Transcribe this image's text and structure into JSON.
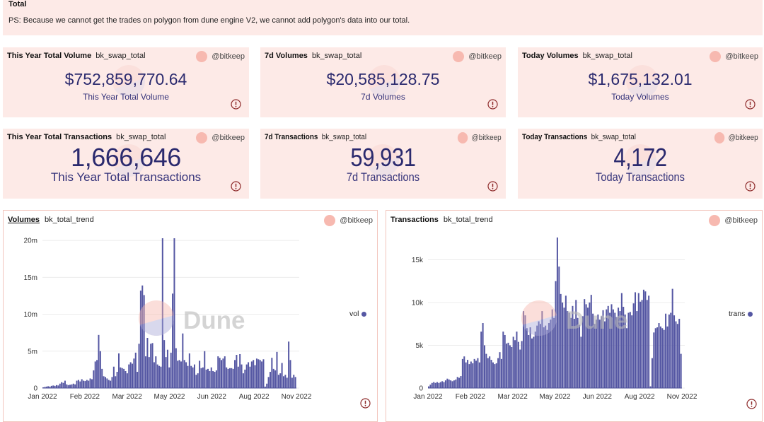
{
  "text_panel": {
    "title": "Total",
    "body": "PS: Because we cannot get the trades on polygon from dune engine V2, we cannot add polygon's data into our total."
  },
  "counters": [
    {
      "title": "This Year Total Volume",
      "query": "bk_swap_total",
      "author": "@bitkeep",
      "value": "$752,859,770.64",
      "label": "This Year Total Volume"
    },
    {
      "title": "7d Volumes",
      "query": "bk_swap_total",
      "author": "@bitkeep",
      "value": "$20,585,128.75",
      "label": "7d Volumes"
    },
    {
      "title": "Today Volumes",
      "query": "bk_swap_total",
      "author": "@bitkeep",
      "value": "$1,675,132.01",
      "label": "Today Volumes"
    },
    {
      "title": "This Year Total Transactions",
      "query": "bk_swap_total",
      "author": "@bitkeep",
      "value": "1,666,646",
      "label": "This Year Total Transactions"
    },
    {
      "title": "7d Transactions",
      "query": "bk_swap_total",
      "author": "@bitkeep",
      "value": "59,931",
      "label": "7d Transactions"
    },
    {
      "title": "Today Transactions",
      "query": "bk_swap_total",
      "author": "@bitkeep",
      "value": "4,172",
      "label": "Today Transactions"
    }
  ],
  "icons": {
    "avatar": "author-avatar",
    "warning": "exclamation-circle-icon",
    "legend_marker": "dot"
  },
  "colors": {
    "panel_bg": "#fdeae7",
    "value_text": "#2b2a6e",
    "bar": "#5557a3",
    "avatar": "#f7b9b0",
    "warning": "#8e2b2b",
    "chart_border": "#f2c5bd"
  },
  "watermark_text": "Dune",
  "chart_data": [
    {
      "type": "bar",
      "title": "Volumes",
      "subtitle": "bk_total_trend",
      "author": "@bitkeep",
      "xlabel": "",
      "ylabel": "",
      "value_unit": "millions USD",
      "ylim": [
        0,
        20.4
      ],
      "y_ticks": [
        0,
        5,
        10,
        15,
        20
      ],
      "y_tick_labels": [
        "0",
        "5m",
        "10m",
        "15m",
        "20m"
      ],
      "x_tick_labels": [
        "Jan 2022",
        "Feb 2022",
        "Mar 2022",
        "May 2022",
        "Jun 2022",
        "Aug 2022",
        "Nov 2022"
      ],
      "grid": true,
      "legend_position": "right",
      "series": [
        {
          "name": "vol",
          "values": [
            0.1,
            0.15,
            0.2,
            0.25,
            0.2,
            0.3,
            0.35,
            0.3,
            0.4,
            0.35,
            0.6,
            0.8,
            0.7,
            1.0,
            0.5,
            0.4,
            0.45,
            0.5,
            0.6,
            0.5,
            1.0,
            1.1,
            0.9,
            1.2,
            1.0,
            0.95,
            1.1,
            1.0,
            1.3,
            1.2,
            2.4,
            3.6,
            3.8,
            7.2,
            5.0,
            2.6,
            1.6,
            1.5,
            1.3,
            1.1,
            1.0,
            1.5,
            2.9,
            1.6,
            2.2,
            4.7,
            2.8,
            2.7,
            2.6,
            2.3,
            2.0,
            3.2,
            3.5,
            3.3,
            4.0,
            4.8,
            2.2,
            6.0,
            13.2,
            13.9,
            12.6,
            4.3,
            6.8,
            4.2,
            6.0,
            6.1,
            3.5,
            4.3,
            3.2,
            3.0,
            2.9,
            20.3,
            6.5,
            4.2,
            5.2,
            2.8,
            4.8,
            12.8,
            20.3,
            5.4,
            3.7,
            3.8,
            3.6,
            7.4,
            3.8,
            3.5,
            3.0,
            4.7,
            3.0,
            2.8,
            3.2,
            1.8,
            2.0,
            3.7,
            2.7,
            2.8,
            5.0,
            2.5,
            2.6,
            2.3,
            2.8,
            2.3,
            2.2,
            2.4,
            4.3,
            4.1,
            3.8,
            4.0,
            4.3,
            2.8,
            2.6,
            2.7,
            2.7,
            2.6,
            3.8,
            4.5,
            2.9,
            4.6,
            3.2,
            2.0,
            2.5,
            3.2,
            3.5,
            2.9,
            3.6,
            3.8,
            3.1,
            4.0,
            3.9,
            3.8,
            3.6,
            3.9,
            0.2,
            0.6,
            1.5,
            2.2,
            4.1,
            2.6,
            2.4,
            4.9,
            1.8,
            2.0,
            3.4,
            1.6,
            1.8,
            1.4,
            6.3,
            3.8,
            1.4,
            1.8,
            1.5
          ]
        }
      ]
    },
    {
      "type": "bar",
      "title": "Transactions",
      "subtitle": "bk_total_trend",
      "author": "@bitkeep",
      "xlabel": "",
      "ylabel": "",
      "value_unit": "thousands of transactions",
      "ylim": [
        0,
        17.6
      ],
      "y_ticks": [
        0,
        5,
        10,
        15
      ],
      "y_tick_labels": [
        "0",
        "5k",
        "10k",
        "15k"
      ],
      "x_tick_labels": [
        "Jan 2022",
        "Feb 2022",
        "Mar 2022",
        "May 2022",
        "Jun 2022",
        "Aug 2022",
        "Nov 2022"
      ],
      "grid": true,
      "legend_position": "right",
      "series": [
        {
          "name": "trans",
          "values": [
            0.2,
            0.4,
            0.6,
            0.7,
            0.6,
            0.7,
            0.6,
            0.7,
            0.8,
            0.7,
            0.9,
            1.1,
            1.0,
            0.9,
            0.8,
            0.9,
            1.0,
            1.3,
            1.2,
            1.4,
            3.4,
            3.7,
            3.0,
            3.3,
            2.8,
            3.1,
            2.9,
            3.4,
            3.2,
            3.5,
            3.0,
            6.6,
            7.6,
            5.0,
            4.0,
            3.5,
            3.7,
            3.3,
            3.0,
            2.8,
            2.9,
            3.5,
            4.2,
            3.4,
            6.6,
            6.2,
            5.2,
            5.3,
            5.0,
            4.8,
            6.0,
            5.6,
            6.6,
            5.4,
            4.5,
            5.5,
            9.0,
            8.5,
            7.0,
            6.2,
            7.1,
            5.8,
            6.0,
            6.6,
            7.3,
            7.8,
            7.5,
            9.0,
            7.1,
            7.3,
            6.8,
            7.6,
            8.0,
            9.2,
            8.2,
            12.5,
            17.6,
            14.2,
            11.0,
            10.0,
            9.4,
            10.8,
            9.0,
            8.8,
            8.2,
            9.6,
            8.1,
            10.3,
            8.2,
            7.4,
            6.0,
            8.4,
            10.4,
            9.8,
            9.4,
            10.0,
            10.9,
            8.7,
            7.5,
            8.0,
            8.6,
            8.0,
            8.4,
            9.1,
            7.8,
            9.2,
            9.6,
            8.8,
            9.8,
            9.2,
            8.8,
            8.3,
            9.4,
            9.0,
            11.1,
            9.5,
            8.6,
            7.0,
            8.8,
            8.9,
            8.5,
            9.9,
            11.2,
            9.0,
            11.1,
            10.1,
            10.3,
            11.5,
            11.3,
            10.3,
            10.8,
            0.2,
            3.5,
            6.5,
            7.0,
            7.1,
            7.6,
            7.2,
            7.0,
            6.8,
            8.7,
            7.2,
            8.6,
            8.8,
            11.6,
            8.5,
            7.8,
            7.5,
            8.1,
            4.0
          ]
        }
      ]
    }
  ]
}
